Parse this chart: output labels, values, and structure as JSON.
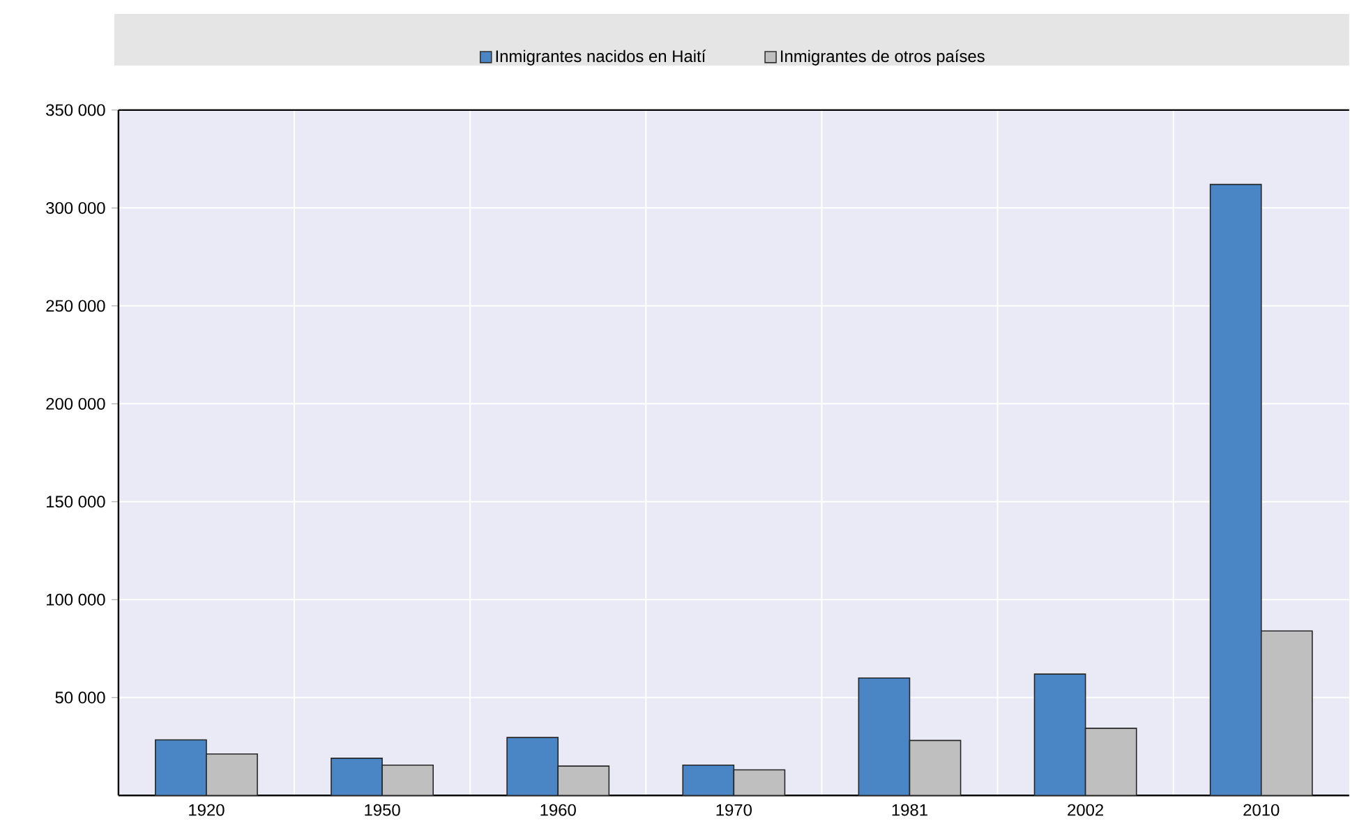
{
  "chart_data": {
    "type": "bar",
    "categories": [
      "1920",
      "1950",
      "1960",
      "1970",
      "1981",
      "2002",
      "2010"
    ],
    "series": [
      {
        "name": "Inmigrantes nacidos en Haití",
        "color": "#4a86c5",
        "values": [
          28400,
          19000,
          29600,
          15500,
          60000,
          62000,
          312000
        ]
      },
      {
        "name": "Inmigrantes de otros países",
        "color": "#bfbfbf",
        "values": [
          21200,
          15500,
          15000,
          13100,
          28100,
          34300,
          84000
        ]
      }
    ],
    "ylim": [
      0,
      350000
    ],
    "yticks": [
      {
        "value": 50000,
        "label": "50 000"
      },
      {
        "value": 100000,
        "label": "100 000"
      },
      {
        "value": 150000,
        "label": "150 000"
      },
      {
        "value": 200000,
        "label": "200 000"
      },
      {
        "value": 250000,
        "label": "250 000"
      },
      {
        "value": 300000,
        "label": "300 000"
      },
      {
        "value": 350000,
        "label": "350 000"
      }
    ],
    "grid": true,
    "legend": "top"
  }
}
